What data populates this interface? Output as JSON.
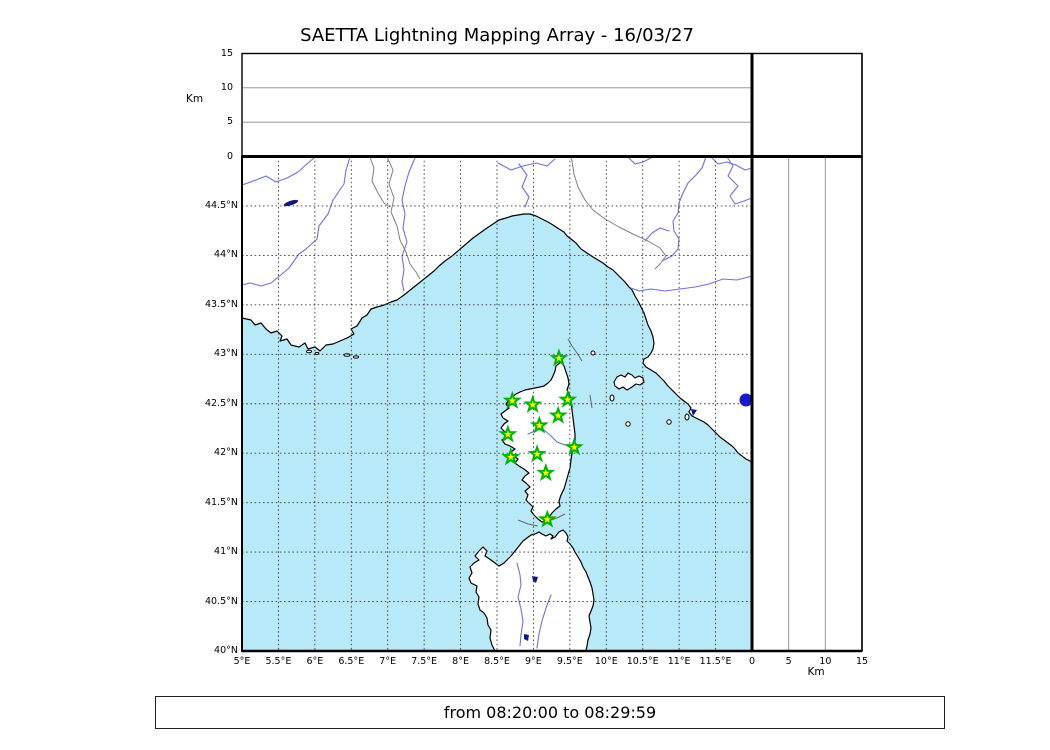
{
  "title": "SAETTA Lightning Mapping Array - 16/03/27",
  "footer": "from 08:20:00 to 08:29:59",
  "chart_data": {
    "type": "scatter",
    "title": "SAETTA Lightning Mapping Array - 16/03/27",
    "map": {
      "lon_range": [
        5,
        12
      ],
      "lat_range": [
        40,
        45
      ],
      "lon_tick_step": 0.5,
      "lat_tick_step": 0.5,
      "lon_ticks": [
        "5°E",
        "5.5°E",
        "6°E",
        "6.5°E",
        "7°E",
        "7.5°E",
        "8°E",
        "8.5°E",
        "9°E",
        "9.5°E",
        "10°E",
        "10.5°E",
        "11°E",
        "11.5°E"
      ],
      "lat_ticks": [
        "40°N",
        "40.5°N",
        "41°N",
        "41.5°N",
        "42°N",
        "42.5°N",
        "43°N",
        "43.5°N",
        "44°N",
        "44.5°N"
      ],
      "grid": "dotted"
    },
    "altitude": {
      "label": "Km",
      "range_km": [
        0,
        15
      ],
      "tick_values": [
        0,
        5,
        10,
        15
      ],
      "ticks": [
        "0",
        "5",
        "10",
        "15"
      ],
      "gridlines_km": [
        5,
        10
      ]
    },
    "stations_lon_lat": [
      [
        9.35,
        42.96
      ],
      [
        8.71,
        42.53
      ],
      [
        8.99,
        42.49
      ],
      [
        9.47,
        42.54
      ],
      [
        9.34,
        42.38
      ],
      [
        9.08,
        42.28
      ],
      [
        8.65,
        42.19
      ],
      [
        9.56,
        42.06
      ],
      [
        8.69,
        41.96
      ],
      [
        9.05,
        41.99
      ],
      [
        9.17,
        41.8
      ],
      [
        9.19,
        41.33
      ]
    ],
    "lightning_events": []
  },
  "colors": {
    "sea": "#b7e9f8",
    "land": "#ffffff",
    "coastline": "#000000",
    "river": "#7070e0",
    "admin_border": "#808080",
    "grid_dots": "#3a3a3a",
    "station_fill": "#ffff00",
    "station_stroke": "#00b400",
    "lake_dark": "#151580",
    "lake_bolsena": "#1a1acd"
  }
}
